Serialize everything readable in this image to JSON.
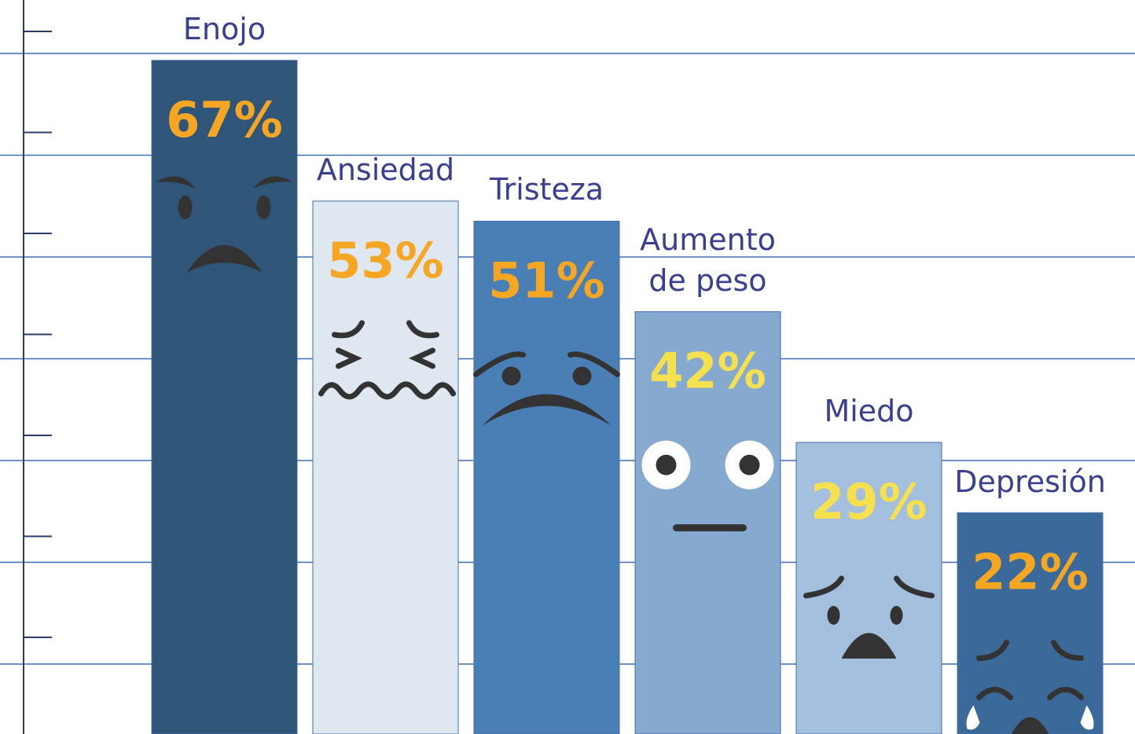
{
  "chart_data": {
    "type": "bar",
    "categories": [
      "Enojo",
      "Ansiedad",
      "Tristeza",
      "Aumento de peso",
      "Miedo",
      "Depresión"
    ],
    "values": [
      67,
      53,
      51,
      42,
      29,
      22
    ],
    "value_labels": [
      "67%",
      "53%",
      "51%",
      "42%",
      "29%",
      "22%"
    ],
    "colors": [
      "#2f5579",
      "#dfe7f1",
      "#4a7fb5",
      "#86a9d0",
      "#a4bfdd",
      "#3b6a9a"
    ],
    "value_label_colors": [
      "#f5a623",
      "#f5a623",
      "#f5a623",
      "#f5e050",
      "#f5e050",
      "#f5a623"
    ],
    "ylim": [
      0,
      73
    ]
  }
}
